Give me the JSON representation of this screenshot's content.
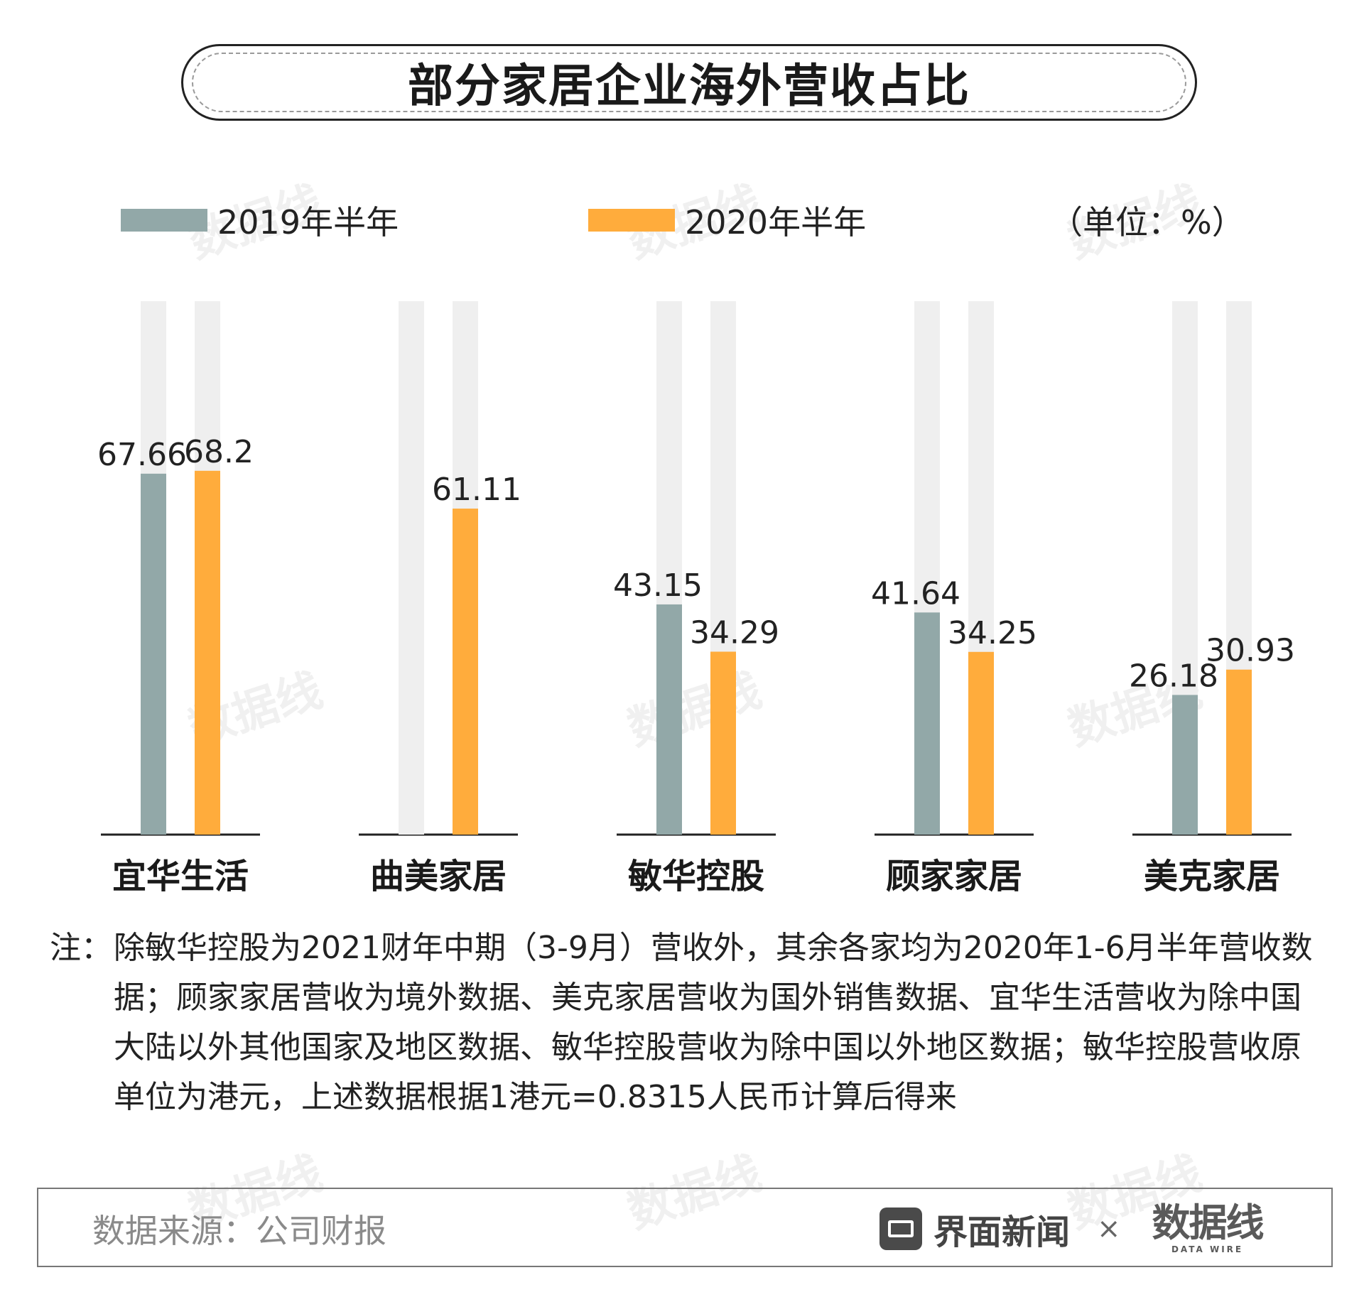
{
  "title": "部分家居企业海外营收占比",
  "legend": {
    "items": [
      {
        "label": "2019年半年",
        "color": "#92a8a8"
      },
      {
        "label": "2020年半年",
        "color": "#ffac3c"
      }
    ],
    "unit": "（单位：%）"
  },
  "chart_data": {
    "type": "bar",
    "categories": [
      "宜华生活",
      "曲美家居",
      "敏华控股",
      "顾家家居",
      "美克家居"
    ],
    "series": [
      {
        "name": "2019年半年",
        "values": [
          67.66,
          null,
          43.15,
          41.64,
          26.18
        ],
        "labels": [
          "67.66",
          "",
          "43.15",
          "41.64",
          "26.18"
        ]
      },
      {
        "name": "2020年半年",
        "values": [
          68.2,
          61.11,
          34.29,
          34.25,
          30.93
        ],
        "labels": [
          "68.2",
          "61.11",
          "34.29",
          "34.25",
          "30.93"
        ]
      }
    ],
    "ylim": [
      0,
      100
    ],
    "grid": false,
    "legend_position": "top"
  },
  "colors": {
    "series_2019": "#92a8a8",
    "series_2020": "#ffac3c",
    "track": "#efefef",
    "baseline": "#222222"
  },
  "note": {
    "label": "注：",
    "text": "除敏华控股为2021财年中期（3-9月）营收外，其余各家均为2020年1-6月半年营收数据；顾家家居营收为境外数据、美克家居营收为国外销售数据、宜华生活营收为除中国大陆以外其他国家及地区数据、敏华控股营收为除中国以外地区数据；敏华控股营收原单位为港元，上述数据根据1港元=0.8315人民币计算后得来"
  },
  "footer": {
    "source": "数据来源：公司财报",
    "brand": "界面新闻",
    "separator": "×",
    "partner": "数据线",
    "partner_sub": "DATA WIRE"
  }
}
